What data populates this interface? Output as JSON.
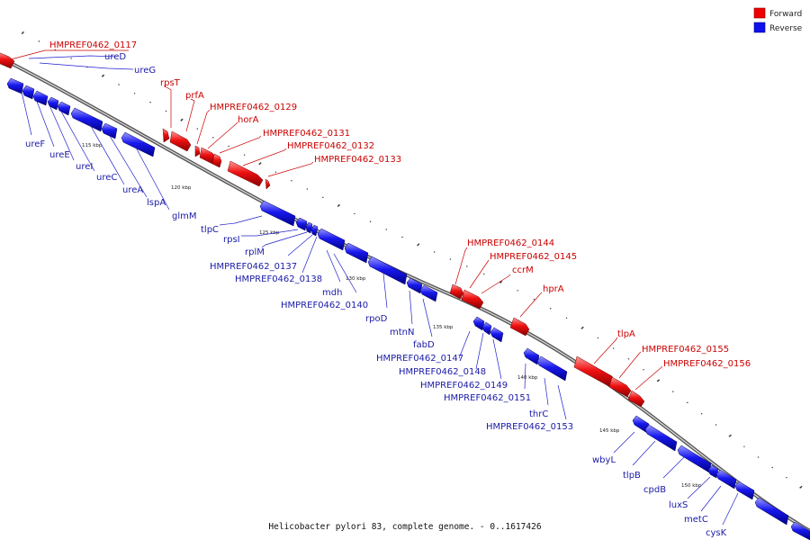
{
  "caption": "Helicobacter pylori 83, complete genome. - 0..1617426",
  "legend": [
    {
      "label": "Forward",
      "color": "#ee0000"
    },
    {
      "label": "Reverse",
      "color": "#1010ee"
    }
  ],
  "ticks": [
    "115 kbp",
    "120 kbp",
    "125 kbp",
    "130 kbp",
    "135 kbp",
    "140 kbp",
    "145 kbp",
    "150 kbp"
  ],
  "forward_genes": [
    "HMPREF0462_0117",
    "rpsT",
    "prfA",
    "HMPREF0462_0129",
    "horA",
    "HMPREF0462_0131",
    "HMPREF0462_0132",
    "HMPREF0462_0133",
    "HMPREF0462_0144",
    "HMPREF0462_0145",
    "ccrM",
    "hprA",
    "tlpA",
    "HMPREF0462_0155",
    "HMPREF0462_0156"
  ],
  "reverse_genes": [
    "ureD",
    "ureG",
    "ureF",
    "ureE",
    "ureI",
    "ureC",
    "ureA",
    "lspA",
    "glmM",
    "tlpC",
    "rpsI",
    "rplM",
    "HMPREF0462_0137",
    "HMPREF0462_0138",
    "mdh",
    "HMPREF0462_0140",
    "rpoD",
    "mtnN",
    "fabD",
    "HMPREF0462_0147",
    "HMPREF0462_0148",
    "HMPREF0462_0149",
    "HMPREF0462_0151",
    "thrC",
    "HMPREF0462_0153",
    "wbyL",
    "tlpB",
    "cpdB",
    "luxS",
    "metC",
    "cysK"
  ]
}
